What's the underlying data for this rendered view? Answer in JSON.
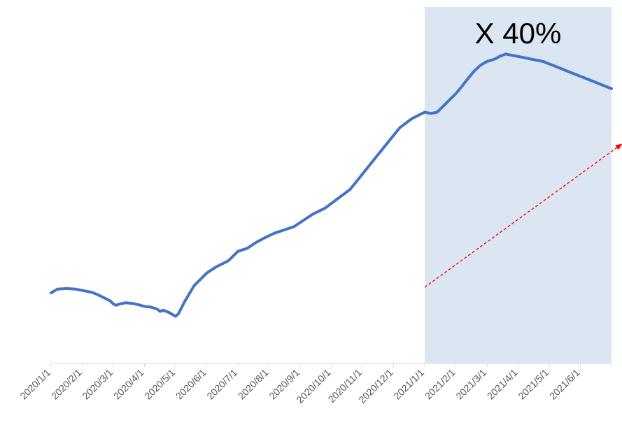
{
  "chart_data": {
    "type": "line",
    "title": "",
    "xlabel": "",
    "ylabel": "",
    "categories": [
      "2020/1/1",
      "2020/2/1",
      "2020/3/1",
      "2020/4/1",
      "2020/5/1",
      "2020/6/1",
      "2020/7/1",
      "2020/8/1",
      "2020/9/1",
      "2020/10/1",
      "2020/11/1",
      "2020/12/1",
      "2021/1/1",
      "2021/2/1",
      "2021/3/1",
      "2021/4/1",
      "2021/5/1",
      "2021/6/1"
    ],
    "x_range": [
      "2020/1/1",
      "2021/7/1"
    ],
    "y_axis_visible": false,
    "grid": false,
    "series": [
      {
        "name": "",
        "color": "#4472C4",
        "points": [
          [
            0,
            0.38
          ],
          [
            0.2,
            0.44
          ],
          [
            0.5,
            0.45
          ],
          [
            0.8,
            0.44
          ],
          [
            1.0,
            0.42
          ],
          [
            1.3,
            0.39
          ],
          [
            1.5,
            0.35
          ],
          [
            1.7,
            0.3
          ],
          [
            1.9,
            0.25
          ],
          [
            2.0,
            0.2
          ],
          [
            2.1,
            0.18
          ],
          [
            2.2,
            0.2
          ],
          [
            2.4,
            0.22
          ],
          [
            2.6,
            0.21
          ],
          [
            2.8,
            0.19
          ],
          [
            3.0,
            0.16
          ],
          [
            3.2,
            0.15
          ],
          [
            3.4,
            0.12
          ],
          [
            3.5,
            0.08
          ],
          [
            3.6,
            0.1
          ],
          [
            3.8,
            0.06
          ],
          [
            3.9,
            0.03
          ],
          [
            4.0,
            0.0
          ],
          [
            4.1,
            0.05
          ],
          [
            4.3,
            0.25
          ],
          [
            4.6,
            0.5
          ],
          [
            5.0,
            0.7
          ],
          [
            5.3,
            0.8
          ],
          [
            5.7,
            0.9
          ],
          [
            6.0,
            1.05
          ],
          [
            6.3,
            1.1
          ],
          [
            6.6,
            1.2
          ],
          [
            6.9,
            1.28
          ],
          [
            7.2,
            1.35
          ],
          [
            7.5,
            1.4
          ],
          [
            7.8,
            1.45
          ],
          [
            8.1,
            1.55
          ],
          [
            8.4,
            1.65
          ],
          [
            8.8,
            1.75
          ],
          [
            9.2,
            1.9
          ],
          [
            9.6,
            2.05
          ],
          [
            10.0,
            2.3
          ],
          [
            10.4,
            2.55
          ],
          [
            10.8,
            2.8
          ],
          [
            11.2,
            3.05
          ],
          [
            11.6,
            3.2
          ],
          [
            12.0,
            3.3
          ],
          [
            12.2,
            3.28
          ],
          [
            12.4,
            3.3
          ],
          [
            12.6,
            3.4
          ],
          [
            12.8,
            3.5
          ],
          [
            13.0,
            3.6
          ],
          [
            13.2,
            3.72
          ],
          [
            13.4,
            3.85
          ],
          [
            13.6,
            3.97
          ],
          [
            13.8,
            4.06
          ],
          [
            14.0,
            4.12
          ],
          [
            14.2,
            4.15
          ],
          [
            14.3,
            4.17
          ],
          [
            14.4,
            4.2
          ],
          [
            14.5,
            4.22
          ],
          [
            14.6,
            4.24
          ],
          [
            14.7,
            4.23
          ],
          [
            14.8,
            4.22
          ],
          [
            14.9,
            4.21
          ],
          [
            15.0,
            4.2
          ],
          [
            15.1,
            4.19
          ],
          [
            15.2,
            4.18
          ],
          [
            15.3,
            4.17
          ],
          [
            15.4,
            4.16
          ],
          [
            15.5,
            4.15
          ],
          [
            15.6,
            4.14
          ],
          [
            15.7,
            4.13
          ],
          [
            15.8,
            4.12
          ],
          [
            15.9,
            4.1
          ],
          [
            16.0,
            4.08
          ],
          [
            16.1,
            4.06
          ],
          [
            16.2,
            4.04
          ],
          [
            16.3,
            4.02
          ],
          [
            16.4,
            4.0
          ],
          [
            16.5,
            3.98
          ],
          [
            16.6,
            3.96
          ],
          [
            16.7,
            3.94
          ],
          [
            16.8,
            3.92
          ],
          [
            16.9,
            3.9
          ],
          [
            17.0,
            3.88
          ],
          [
            17.1,
            3.86
          ],
          [
            17.2,
            3.84
          ],
          [
            17.3,
            3.82
          ],
          [
            17.4,
            3.8
          ],
          [
            17.5,
            3.78
          ],
          [
            17.6,
            3.76
          ],
          [
            17.7,
            3.74
          ],
          [
            17.8,
            3.72
          ],
          [
            17.9,
            3.7
          ],
          [
            18.0,
            3.68
          ]
        ]
      }
    ],
    "highlight_region": {
      "from": "2021/1/1",
      "to": "2021/7/1",
      "color": "#DCE6F2"
    },
    "annotations": [
      {
        "text": "X 40%",
        "color": "#000000"
      }
    ],
    "trend_arrow": {
      "color": "#FF0000",
      "from": [
        "2021/1/1",
        0.47
      ],
      "to": [
        "2021/7/1",
        2.78
      ]
    }
  }
}
